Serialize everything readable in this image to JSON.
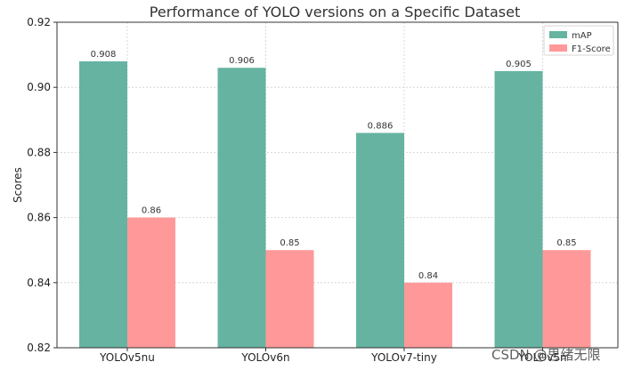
{
  "chart_data": {
    "type": "bar",
    "title": "Performance of YOLO versions on a Specific Dataset",
    "ylabel": "Scores",
    "xlabel": "",
    "categories": [
      "YOLOv5nu",
      "YOLOv6n",
      "YOLOv7-tiny",
      "YOLOv5n"
    ],
    "series": [
      {
        "name": "mAP",
        "values": [
          0.908,
          0.906,
          0.886,
          0.905
        ],
        "labels": [
          "0.908",
          "0.906",
          "0.886",
          "0.905"
        ],
        "color": "#66b3a1"
      },
      {
        "name": "F1-Score",
        "values": [
          0.86,
          0.85,
          0.84,
          0.85
        ],
        "labels": [
          "0.86",
          "0.85",
          "0.84",
          "0.85"
        ],
        "color": "#ff9999"
      }
    ],
    "ylim": [
      0.82,
      0.92
    ],
    "yticks": [
      "0.82",
      "0.84",
      "0.86",
      "0.88",
      "0.90",
      "0.92"
    ],
    "grid": true,
    "legend": "top-right"
  },
  "watermark": "CSDN @思绪无限"
}
